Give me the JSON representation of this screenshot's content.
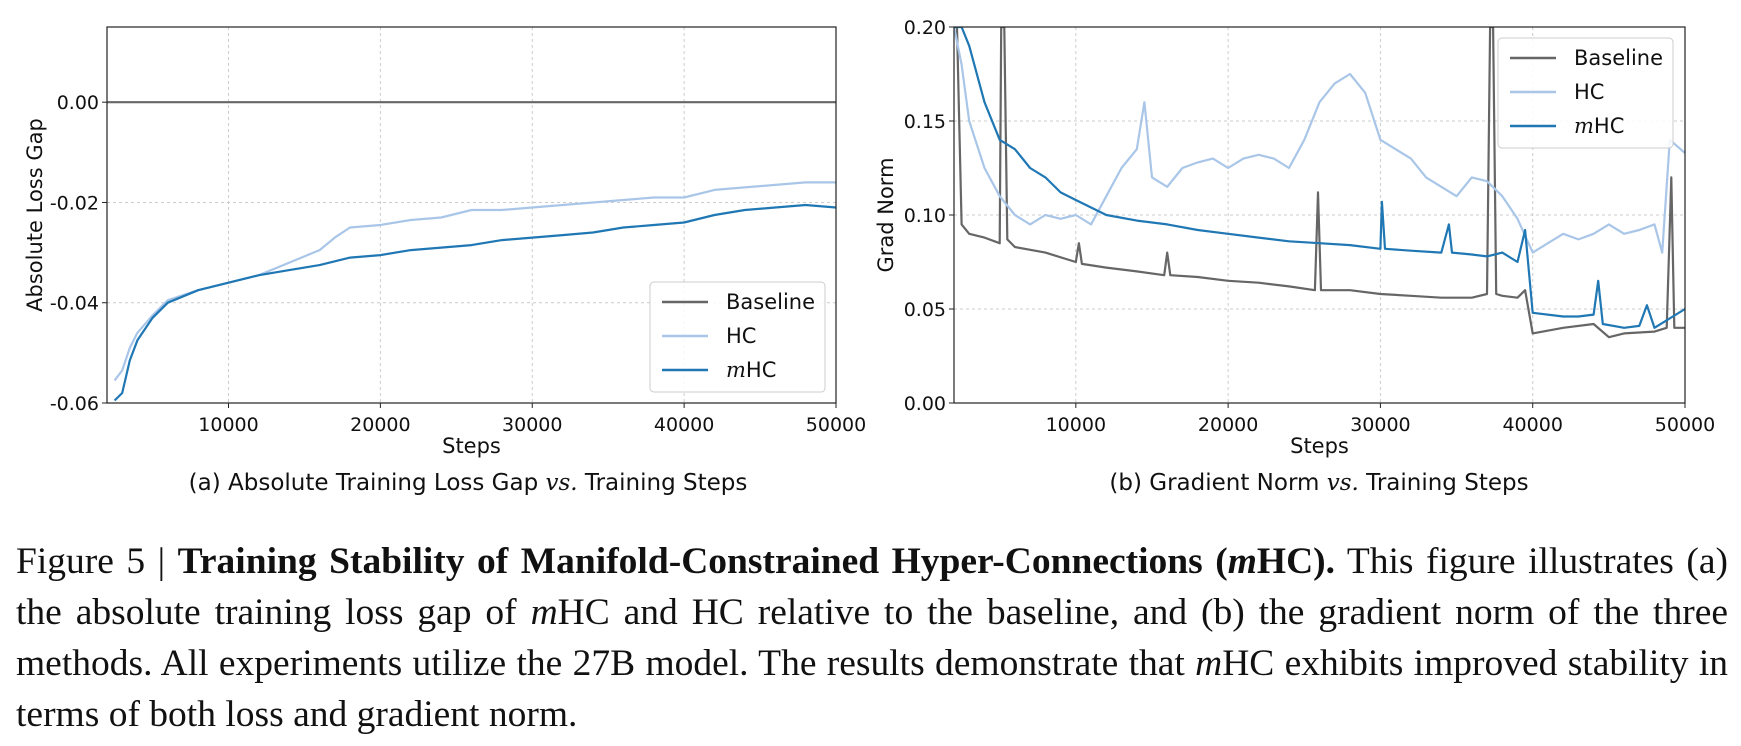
{
  "chart_data": [
    {
      "type": "line",
      "id": "a",
      "caption_prefix": "(a) Absolute Training Loss Gap ",
      "caption_vs": "vs.",
      "caption_suffix": " Training Steps",
      "xlabel": "Steps",
      "ylabel": "Absolute Loss Gap",
      "xlim": [
        2000,
        50000
      ],
      "ylim": [
        -0.06,
        0.015
      ],
      "xticks": [
        10000,
        20000,
        30000,
        40000,
        50000
      ],
      "xtick_labels": [
        "10000",
        "20000",
        "30000",
        "40000",
        "50000"
      ],
      "yticks": [
        -0.06,
        -0.04,
        -0.02,
        0.0
      ],
      "ytick_labels": [
        "-0.06",
        "-0.04",
        "-0.02",
        "0.00"
      ],
      "grid": true,
      "legend_position": "lower-right",
      "series": [
        {
          "name": "Baseline",
          "color": "#666666",
          "x": [
            2000,
            50000
          ],
          "y": [
            0.0,
            0.0
          ]
        },
        {
          "name": "HC",
          "color": "#a9c6e8",
          "x": [
            2500,
            3000,
            3500,
            4000,
            5000,
            6000,
            8000,
            10000,
            12000,
            14000,
            16000,
            17000,
            18000,
            20000,
            22000,
            24000,
            26000,
            28000,
            30000,
            32000,
            34000,
            36000,
            38000,
            40000,
            42000,
            44000,
            46000,
            48000,
            50000
          ],
          "y": [
            -0.0555,
            -0.0535,
            -0.049,
            -0.046,
            -0.0425,
            -0.0395,
            -0.0375,
            -0.036,
            -0.0345,
            -0.032,
            -0.0295,
            -0.027,
            -0.025,
            -0.0245,
            -0.0235,
            -0.023,
            -0.0215,
            -0.0215,
            -0.021,
            -0.0205,
            -0.02,
            -0.0195,
            -0.019,
            -0.019,
            -0.0175,
            -0.017,
            -0.0165,
            -0.016,
            -0.016
          ]
        },
        {
          "name": "mHC",
          "name_math": "m",
          "name_rest": "HC",
          "color": "#1f77b4",
          "x": [
            2500,
            3000,
            3500,
            4000,
            5000,
            6000,
            8000,
            10000,
            12000,
            14000,
            16000,
            18000,
            20000,
            22000,
            24000,
            26000,
            28000,
            30000,
            32000,
            34000,
            36000,
            38000,
            40000,
            42000,
            44000,
            46000,
            48000,
            50000
          ],
          "y": [
            -0.0595,
            -0.058,
            -0.0515,
            -0.0475,
            -0.043,
            -0.04,
            -0.0375,
            -0.036,
            -0.0345,
            -0.0335,
            -0.0325,
            -0.031,
            -0.0305,
            -0.0295,
            -0.029,
            -0.0285,
            -0.0275,
            -0.027,
            -0.0265,
            -0.026,
            -0.025,
            -0.0245,
            -0.024,
            -0.0225,
            -0.0215,
            -0.021,
            -0.0205,
            -0.021
          ]
        }
      ]
    },
    {
      "type": "line",
      "id": "b",
      "caption_prefix": "(b) Gradient Norm ",
      "caption_vs": "vs.",
      "caption_suffix": " Training Steps",
      "xlabel": "Steps",
      "ylabel": "Grad Norm",
      "xlim": [
        2000,
        50000
      ],
      "ylim": [
        0.0,
        0.2
      ],
      "xticks": [
        10000,
        20000,
        30000,
        40000,
        50000
      ],
      "xtick_labels": [
        "10000",
        "20000",
        "30000",
        "40000",
        "50000"
      ],
      "yticks": [
        0.0,
        0.05,
        0.1,
        0.15,
        0.2
      ],
      "ytick_labels": [
        "0.00",
        "0.05",
        "0.10",
        "0.15",
        "0.20"
      ],
      "grid": true,
      "legend_position": "upper-right",
      "series": [
        {
          "name": "Baseline",
          "color": "#666666",
          "x": [
            2000,
            2200,
            2500,
            3000,
            4000,
            5000,
            5100,
            5300,
            5500,
            6000,
            8000,
            10000,
            10200,
            10400,
            12000,
            14000,
            15800,
            16000,
            16200,
            18000,
            20000,
            22000,
            24000,
            25700,
            25900,
            26100,
            28000,
            30000,
            32000,
            34000,
            36000,
            37000,
            37200,
            37400,
            37600,
            38000,
            39000,
            39500,
            40000,
            42000,
            44000,
            45000,
            46000,
            48000,
            48800,
            49100,
            49300,
            50000
          ],
          "y": [
            0.2,
            0.2,
            0.095,
            0.09,
            0.088,
            0.085,
            0.2,
            0.2,
            0.087,
            0.083,
            0.08,
            0.075,
            0.085,
            0.074,
            0.072,
            0.07,
            0.068,
            0.08,
            0.068,
            0.067,
            0.065,
            0.064,
            0.062,
            0.06,
            0.112,
            0.06,
            0.06,
            0.058,
            0.057,
            0.056,
            0.056,
            0.058,
            0.2,
            0.2,
            0.058,
            0.057,
            0.056,
            0.06,
            0.037,
            0.04,
            0.042,
            0.035,
            0.037,
            0.038,
            0.04,
            0.12,
            0.04,
            0.04
          ]
        },
        {
          "name": "HC",
          "color": "#a9c6e8",
          "x": [
            2000,
            2500,
            3000,
            4000,
            5000,
            6000,
            7000,
            8000,
            9000,
            10000,
            11000,
            12000,
            13000,
            14000,
            14500,
            15000,
            16000,
            17000,
            18000,
            19000,
            20000,
            21000,
            22000,
            23000,
            24000,
            25000,
            26000,
            27000,
            28000,
            29000,
            30000,
            31000,
            32000,
            33000,
            34000,
            35000,
            36000,
            37000,
            38000,
            39000,
            40000,
            41000,
            42000,
            43000,
            44000,
            45000,
            46000,
            47000,
            48000,
            48500,
            49000,
            50000
          ],
          "y": [
            0.2,
            0.18,
            0.15,
            0.125,
            0.11,
            0.1,
            0.095,
            0.1,
            0.098,
            0.1,
            0.095,
            0.11,
            0.125,
            0.135,
            0.16,
            0.12,
            0.115,
            0.125,
            0.128,
            0.13,
            0.125,
            0.13,
            0.132,
            0.13,
            0.125,
            0.14,
            0.16,
            0.17,
            0.175,
            0.165,
            0.14,
            0.135,
            0.13,
            0.12,
            0.115,
            0.11,
            0.12,
            0.118,
            0.11,
            0.098,
            0.08,
            0.085,
            0.09,
            0.087,
            0.09,
            0.095,
            0.09,
            0.092,
            0.095,
            0.08,
            0.14,
            0.133
          ]
        },
        {
          "name": "mHC",
          "name_math": "m",
          "name_rest": "HC",
          "color": "#1f77b4",
          "x": [
            2000,
            2500,
            3000,
            4000,
            5000,
            6000,
            7000,
            8000,
            9000,
            10000,
            12000,
            14000,
            16000,
            18000,
            20000,
            22000,
            24000,
            26000,
            28000,
            30000,
            30100,
            30300,
            32000,
            34000,
            34500,
            34700,
            36000,
            37000,
            38000,
            39000,
            39500,
            40000,
            42000,
            43000,
            44000,
            44300,
            44600,
            46000,
            47000,
            47500,
            48000,
            50000
          ],
          "y": [
            0.2,
            0.2,
            0.19,
            0.16,
            0.14,
            0.135,
            0.125,
            0.12,
            0.112,
            0.108,
            0.1,
            0.097,
            0.095,
            0.092,
            0.09,
            0.088,
            0.086,
            0.085,
            0.084,
            0.082,
            0.107,
            0.082,
            0.081,
            0.08,
            0.095,
            0.08,
            0.079,
            0.078,
            0.08,
            0.075,
            0.092,
            0.048,
            0.046,
            0.046,
            0.047,
            0.065,
            0.042,
            0.04,
            0.041,
            0.052,
            0.04,
            0.05
          ]
        }
      ]
    }
  ],
  "caption": {
    "fignum": "Figure 5 | ",
    "title_pre": "Training Stability of Manifold-Constrained Hyper-Connections (",
    "title_m": "m",
    "title_post": "HC).",
    "p1": " This figure illustrates (a) the absolute training loss gap of ",
    "m1": "m",
    "p2": "HC and HC relative to the baseline, and (b) the gradient norm of the three methods.  All experiments utilize the 27B model.  The results demonstrate that ",
    "m2": "m",
    "p3": "HC exhibits improved stability in terms of both loss and gradient norm."
  }
}
